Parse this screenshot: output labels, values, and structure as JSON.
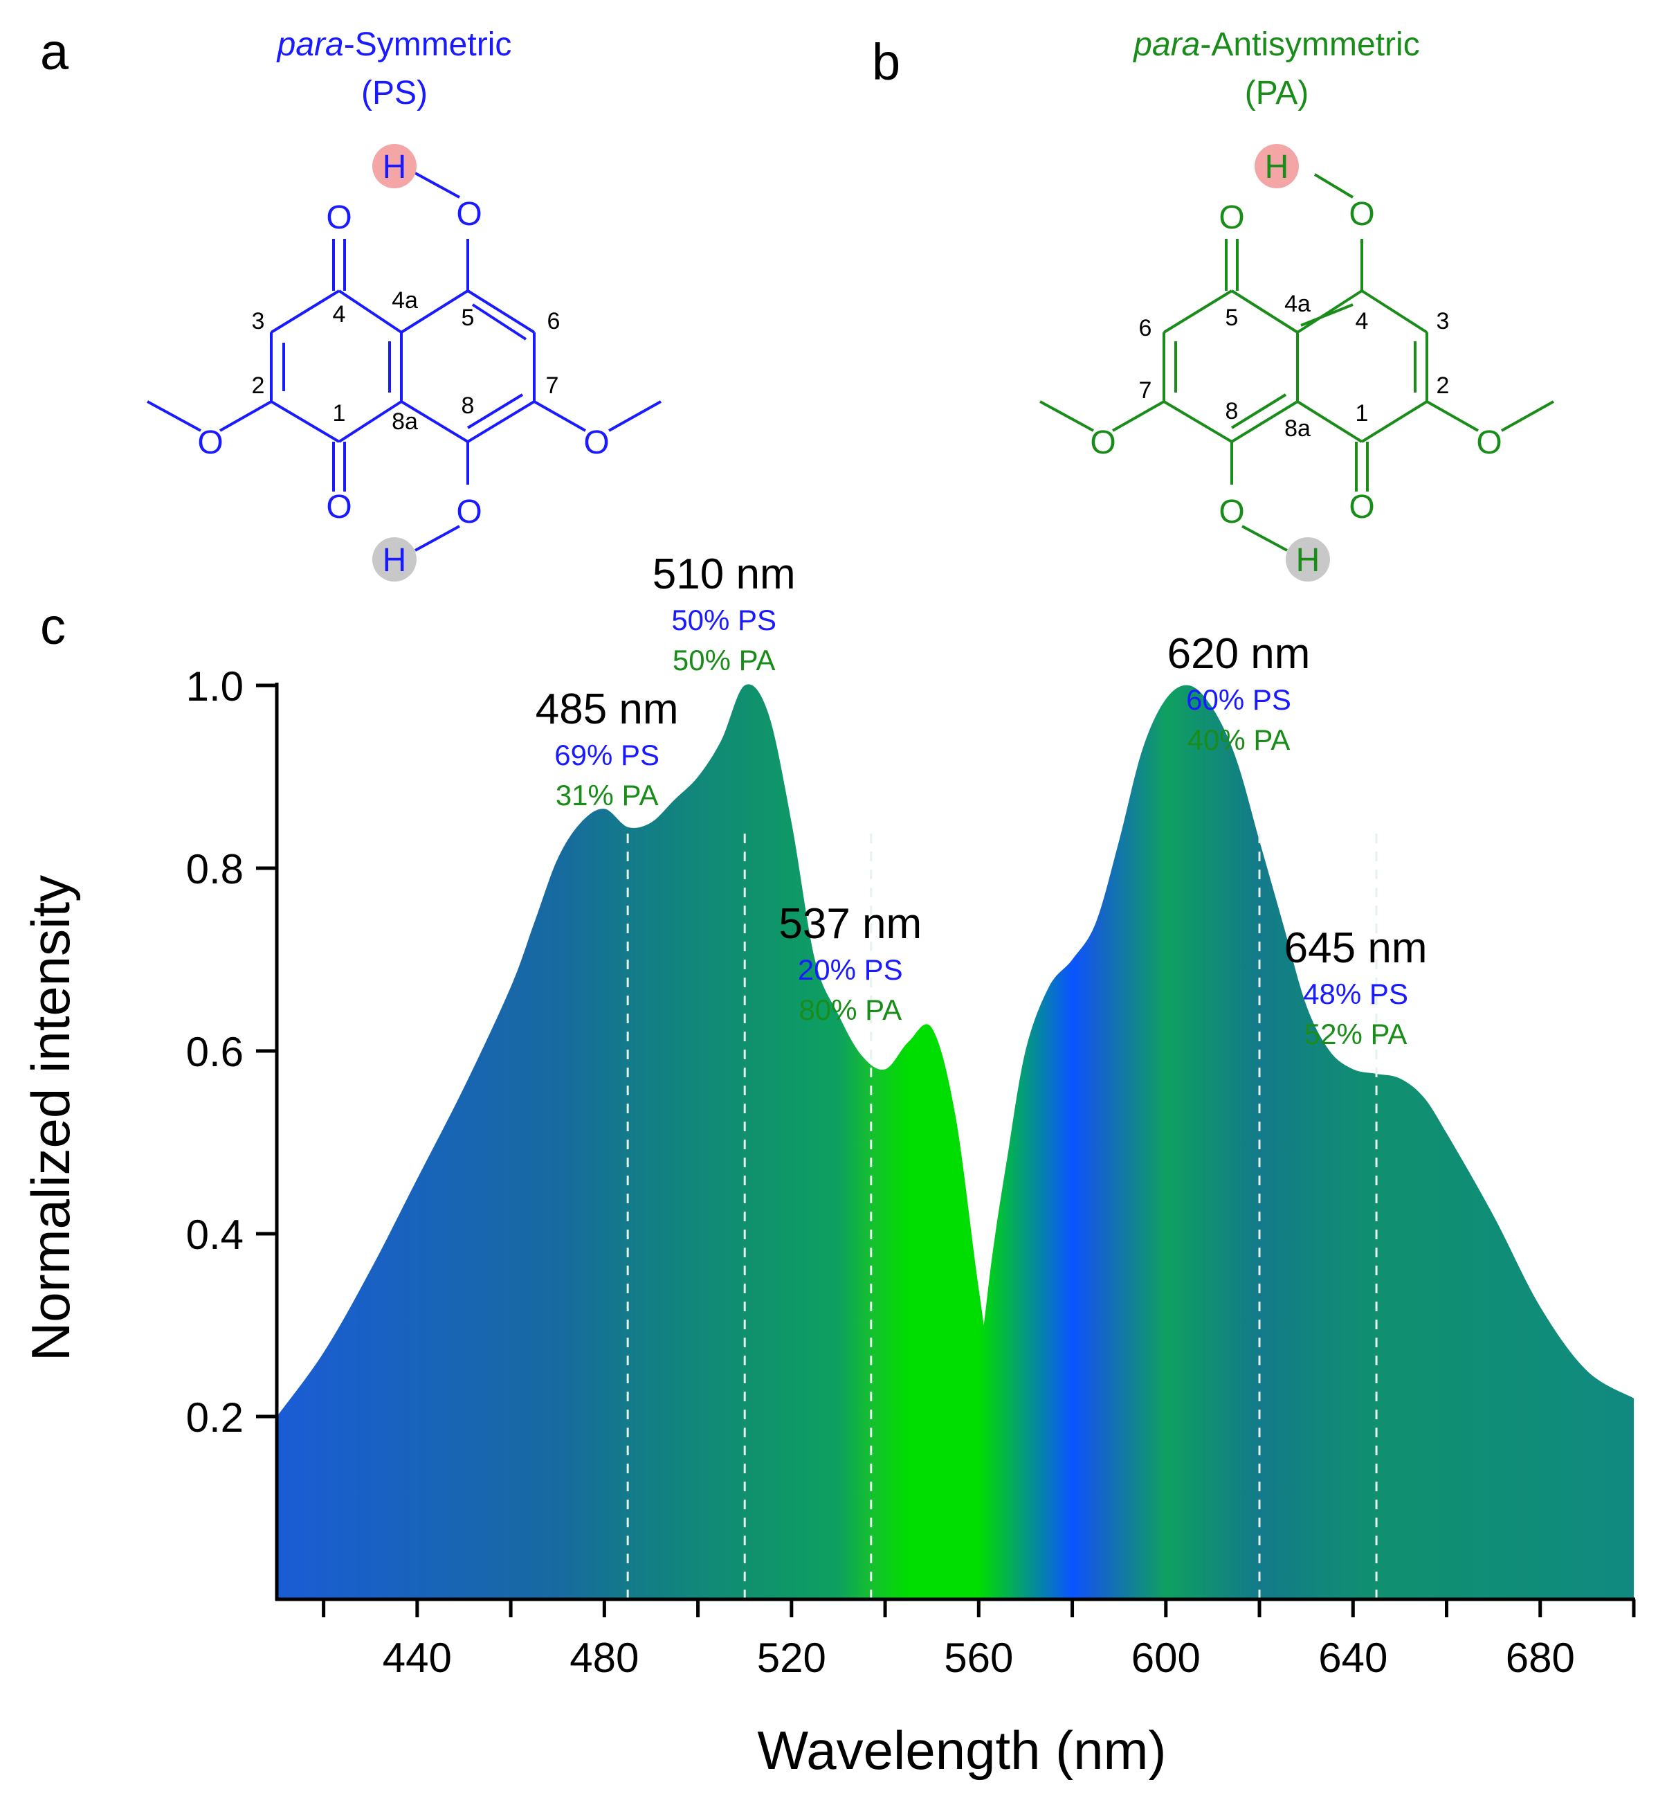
{
  "panel_labels": {
    "a": "a",
    "b": "b",
    "c": "c"
  },
  "colors": {
    "ps": "#1a1aff",
    "pa": "#1a8c1a",
    "axis": "#000000",
    "h_top": "#f4a6a6",
    "h_bottom": "#c8c8c8"
  },
  "molecule_ps": {
    "title_italic": "para",
    "title_rest": "-Symmetric",
    "abbrev": "(PS)",
    "atoms": {
      "h_top": "H",
      "h_bottom": "H",
      "o": "O"
    },
    "numbers": {
      "n1": "1",
      "n2": "2",
      "n3": "3",
      "n4": "4",
      "n4a": "4a",
      "n5": "5",
      "n6": "6",
      "n7": "7",
      "n8": "8",
      "n8a": "8a"
    }
  },
  "molecule_pa": {
    "title_italic": "para",
    "title_rest": "-Antisymmetric",
    "abbrev": "(PA)",
    "atoms": {
      "h_top": "H",
      "h_bottom": "H",
      "o": "O"
    },
    "numbers": {
      "n1": "1",
      "n2": "2",
      "n3": "3",
      "n4": "4",
      "n4a": "4a",
      "n5": "5",
      "n6": "6",
      "n7": "7",
      "n8": "8",
      "n8a": "8a"
    }
  },
  "chart_data": {
    "type": "area",
    "xlabel": "Wavelength (nm)",
    "ylabel": "Normalized intensity",
    "xlim": [
      410,
      700
    ],
    "ylim": [
      0,
      1.0
    ],
    "x_ticks": [
      440,
      480,
      520,
      560,
      600,
      640,
      680
    ],
    "y_ticks": [
      0.2,
      0.4,
      0.6,
      0.8,
      1.0
    ],
    "series": [
      {
        "x": [
          410,
          420,
          430,
          440,
          450,
          460,
          465,
          470,
          475,
          480,
          485,
          490,
          495,
          500,
          505,
          510,
          515,
          520,
          525,
          530,
          535,
          540,
          545,
          550,
          555,
          560,
          565,
          570,
          575,
          580,
          585,
          590,
          600
        ],
        "y": [
          0.2,
          0.27,
          0.36,
          0.46,
          0.56,
          0.67,
          0.74,
          0.81,
          0.85,
          0.865,
          0.845,
          0.85,
          0.875,
          0.9,
          0.94,
          1.0,
          0.97,
          0.85,
          0.7,
          0.64,
          0.595,
          0.58,
          0.61,
          0.625,
          0.53,
          0.34,
          0.17,
          0.08,
          0.035,
          0.012,
          0.004,
          0.001,
          0.0
        ]
      },
      {
        "x": [
          538,
          545,
          550,
          555,
          560,
          563,
          566,
          570,
          575,
          580,
          585,
          590,
          595,
          600,
          605,
          610,
          615,
          620,
          625,
          630,
          635,
          640,
          645,
          650,
          655,
          660,
          670,
          680,
          690,
          700
        ],
        "y": [
          0.0,
          0.01,
          0.04,
          0.12,
          0.26,
          0.38,
          0.48,
          0.6,
          0.67,
          0.7,
          0.74,
          0.83,
          0.93,
          0.985,
          1.0,
          0.975,
          0.92,
          0.83,
          0.74,
          0.65,
          0.6,
          0.58,
          0.575,
          0.57,
          0.55,
          0.51,
          0.42,
          0.32,
          0.25,
          0.22
        ]
      }
    ],
    "peaks": [
      {
        "label": "485 nm",
        "x": 485,
        "ps": "69% PS",
        "pa": "31% PA"
      },
      {
        "label": "510 nm",
        "x": 510,
        "ps": "50% PS",
        "pa": "50% PA"
      },
      {
        "label": "537 nm",
        "x": 537,
        "ps": "20% PS",
        "pa": "80% PA"
      },
      {
        "label": "620 nm",
        "x": 620,
        "ps": "60% PS",
        "pa": "40% PA"
      },
      {
        "label": "645 nm",
        "x": 645,
        "ps": "48% PS",
        "pa": "52% PA"
      }
    ],
    "gradient_stops": [
      {
        "x": 410,
        "ps_frac": 1.0,
        "color": "#1a5cd6"
      },
      {
        "x": 470,
        "ps_frac": 0.8,
        "color": "#176aa0"
      },
      {
        "x": 485,
        "ps_frac": 0.69,
        "color": "#137a8a"
      },
      {
        "x": 510,
        "ps_frac": 0.5,
        "color": "#10906f"
      },
      {
        "x": 530,
        "ps_frac": 0.4,
        "color": "#0da060"
      },
      {
        "x": 537,
        "ps_frac": 0.2,
        "color": "#15c030"
      },
      {
        "x": 545,
        "ps_frac": 0.0,
        "color": "#00dd00"
      },
      {
        "x": 560,
        "ps_frac": 0.0,
        "color": "#00dd00"
      },
      {
        "x": 580,
        "ps_frac": 1.0,
        "color": "#0a55ff"
      },
      {
        "x": 585,
        "ps_frac": 0.95,
        "color": "#1560d0"
      },
      {
        "x": 600,
        "ps_frac": 0.6,
        "color": "#0fa060"
      },
      {
        "x": 620,
        "ps_frac": 0.6,
        "color": "#137a8a"
      },
      {
        "x": 645,
        "ps_frac": 0.48,
        "color": "#10906f"
      },
      {
        "x": 700,
        "ps_frac": 0.5,
        "color": "#108a80"
      }
    ]
  }
}
